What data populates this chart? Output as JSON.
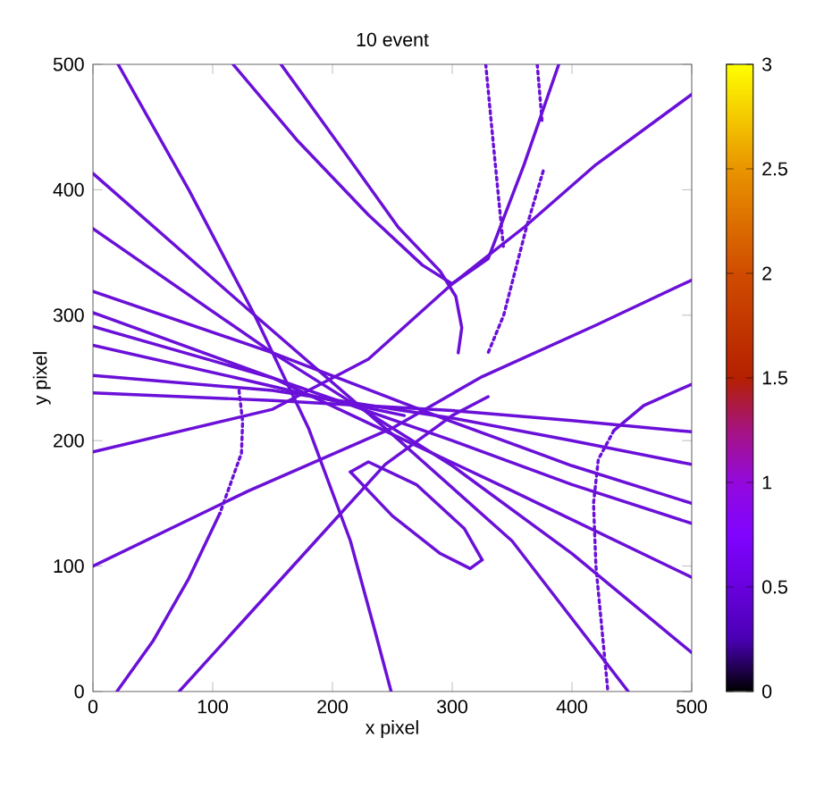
{
  "chart_data": {
    "type": "line",
    "title": "10 event",
    "xlabel": "x pixel",
    "ylabel": "y pixel",
    "xlim": [
      0,
      500
    ],
    "ylim": [
      0,
      500
    ],
    "xticks": [
      0,
      100,
      200,
      300,
      400,
      500
    ],
    "yticks": [
      0,
      100,
      200,
      300,
      400,
      500
    ],
    "clim": [
      0,
      3
    ],
    "cticks": [
      0,
      0.5,
      1,
      1.5,
      2,
      2.5,
      3
    ],
    "grid": false,
    "series": [
      {
        "color": "#6a10d8",
        "x": [
          21,
          80,
          135,
          180,
          215,
          235,
          249
        ],
        "values": [
          500,
          400,
          300,
          210,
          120,
          50,
          0
        ]
      },
      {
        "color": "#6a10d8",
        "x": [
          117,
          170,
          230,
          275,
          300,
          330,
          360,
          389
        ],
        "values": [
          500,
          440,
          380,
          340,
          325,
          345,
          420,
          500
        ]
      },
      {
        "color": "#6a10d8",
        "x": [
          157,
          210,
          255,
          290,
          303,
          308,
          305
        ],
        "values": [
          500,
          430,
          370,
          335,
          315,
          290,
          270
        ]
      },
      {
        "color": "#6a10d8",
        "x": [
          328,
          335,
          343
        ],
        "values": [
          500,
          430,
          352
        ],
        "line_style": "dotted"
      },
      {
        "color": "#6a10d8",
        "x": [
          371,
          375
        ],
        "values": [
          500,
          455
        ],
        "line_style": "dotted"
      },
      {
        "color": "#6a10d8",
        "x": [
          376,
          362,
          343,
          330
        ],
        "values": [
          415,
          370,
          300,
          270
        ],
        "line_style": "dotted"
      },
      {
        "color": "#6a10d8",
        "x": [
          500,
          460,
          435
        ],
        "values": [
          245,
          228,
          208
        ]
      },
      {
        "color": "#6a10d8",
        "x": [
          435,
          422,
          418,
          420,
          425,
          430
        ],
        "values": [
          208,
          185,
          150,
          100,
          50,
          0
        ],
        "line_style": "dotted"
      },
      {
        "color": "#6a10d8",
        "x": [
          122,
          125,
          124,
          106
        ],
        "values": [
          240,
          215,
          190,
          142
        ],
        "line_style": "dotted"
      },
      {
        "color": "#6a10d8",
        "x": [
          106,
          80,
          50,
          20
        ],
        "values": [
          142,
          90,
          40,
          0
        ]
      },
      {
        "color": "#6a10d8",
        "x": [
          72,
          186,
          244,
          300,
          330
        ],
        "values": [
          0,
          120,
          181,
          220,
          235
        ]
      },
      {
        "color": "#6a10d8",
        "x": [
          0,
          150,
          230,
          300,
          360,
          420,
          500
        ],
        "values": [
          191,
          225,
          265,
          325,
          370,
          420,
          476
        ]
      },
      {
        "color": "#6a10d8",
        "x": [
          0,
          130,
          250,
          325,
          420,
          500
        ],
        "values": [
          100,
          160,
          210,
          251,
          292,
          328
        ]
      },
      {
        "color": "#6a10d8",
        "x": [
          0,
          135,
          250,
          350,
          447
        ],
        "values": [
          413,
          300,
          205,
          120,
          0
        ]
      },
      {
        "color": "#6a10d8",
        "x": [
          0,
          150,
          300,
          400,
          500
        ],
        "values": [
          369,
          270,
          180,
          110,
          31
        ]
      },
      {
        "color": "#6a10d8",
        "x": [
          0,
          150,
          300,
          400,
          500
        ],
        "values": [
          238,
          232,
          224,
          216,
          207
        ]
      },
      {
        "color": "#6a10d8",
        "x": [
          0,
          150,
          300,
          400,
          500
        ],
        "values": [
          252,
          240,
          218,
          200,
          181
        ]
      },
      {
        "color": "#6a10d8",
        "x": [
          0,
          150,
          300,
          400,
          500
        ],
        "values": [
          319,
          270,
          215,
          180,
          150
        ]
      },
      {
        "color": "#6a10d8",
        "x": [
          0,
          150,
          300,
          400,
          500
        ],
        "values": [
          291,
          250,
          200,
          165,
          134
        ]
      },
      {
        "color": "#6a10d8",
        "x": [
          0,
          150,
          250,
          350,
          500
        ],
        "values": [
          302,
          250,
          205,
          160,
          91
        ]
      },
      {
        "color": "#6a10d8",
        "x": [
          0,
          120,
          200,
          260
        ],
        "values": [
          276,
          250,
          232,
          220
        ]
      },
      {
        "color": "#6a10d8",
        "x": [
          215,
          230,
          270,
          310,
          325
        ],
        "values": [
          175,
          183,
          165,
          130,
          105
        ]
      },
      {
        "color": "#6a10d8",
        "x": [
          325,
          315,
          290,
          250,
          215
        ],
        "values": [
          105,
          98,
          110,
          140,
          175
        ]
      }
    ]
  }
}
